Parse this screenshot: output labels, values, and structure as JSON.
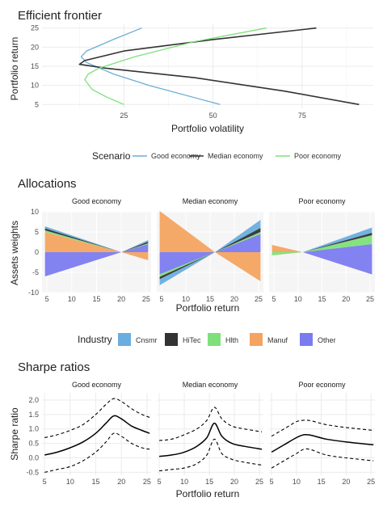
{
  "colors": {
    "good": "#6baed6",
    "median": "#333333",
    "poor": "#7fe07a",
    "Cnsmr": "#6aaee0",
    "HiTec": "#333333",
    "Hlth": "#7fe07a",
    "Manuf": "#f4a460",
    "Other": "#7b7bf0",
    "grid": "#ebebeb",
    "panel_bg": "#f5f5f5"
  },
  "frontier": {
    "title": "Efficient frontier",
    "xlabel": "Portfolio volatility",
    "ylabel": "Portfolio return",
    "xticks": [
      "25",
      "50",
      "75"
    ],
    "yticks": [
      "5",
      "10",
      "15",
      "20",
      "25"
    ]
  },
  "legend1": {
    "title": "Scenario",
    "items": [
      "Good economy",
      "Median economy",
      "Poor economy"
    ]
  },
  "allocations": {
    "title": "Allocations",
    "ylabel": "Assets weights",
    "xlabel": "Portfolio return",
    "panels": [
      "Good economy",
      "Median economy",
      "Poor economy"
    ],
    "xticks": [
      "5",
      "10",
      "15",
      "20",
      "25"
    ],
    "yticks": [
      "10",
      "5",
      "0",
      "-5",
      "-10"
    ]
  },
  "legend2": {
    "title": "Industry",
    "items": [
      "Cnsmr",
      "HiTec",
      "Hlth",
      "Manuf",
      "Other"
    ]
  },
  "sharpe": {
    "title": "Sharpe ratios",
    "ylabel": "Sharpe ratio",
    "xlabel": "Portfolio return",
    "panels": [
      "Good economy",
      "Median economy",
      "Poor economy"
    ],
    "xticks": [
      "5",
      "10",
      "15",
      "20",
      "25"
    ],
    "yticks": [
      "2.0",
      "1.5",
      "1.0",
      "0.5",
      "0.0",
      "-0.5"
    ]
  },
  "chart_data": [
    {
      "type": "line",
      "title": "Efficient frontier",
      "xlabel": "Portfolio volatility",
      "ylabel": "Portfolio return",
      "xlim": [
        2,
        95
      ],
      "ylim": [
        4,
        26
      ],
      "series": [
        {
          "name": "Good economy",
          "x": [
            30,
            22,
            14.5,
            13,
            14.5,
            22,
            32,
            52
          ],
          "y": [
            25,
            22,
            19,
            17.5,
            16,
            13,
            10,
            5
          ]
        },
        {
          "name": "Median economy",
          "x": [
            79,
            50,
            25,
            14,
            12.5,
            20,
            45,
            70,
            91
          ],
          "y": [
            25,
            22,
            19,
            16.5,
            15.5,
            14.5,
            12,
            8.5,
            5
          ]
        },
        {
          "name": "Poor economy",
          "x": [
            65,
            45,
            28,
            18,
            15,
            14,
            16,
            20,
            25
          ],
          "y": [
            25,
            21.5,
            17.5,
            14.5,
            13,
            11.5,
            9,
            7,
            5
          ]
        }
      ]
    },
    {
      "type": "area",
      "title": "Allocations",
      "xlabel": "Portfolio return",
      "ylabel": "Assets weights",
      "xlim": [
        4,
        26
      ],
      "ylim": [
        -10,
        10
      ],
      "panels": [
        {
          "name": "Good economy",
          "x0": 4.6,
          "x1": 25.4,
          "xc": 20,
          "pos": {
            "Cnsmr": [
              0.5,
              0.4
            ],
            "HiTec": [
              0.5,
              0.4
            ],
            "Hlth": [
              0.4,
              0.2
            ],
            "Manuf": [
              5.0,
              0.0
            ],
            "Other": [
              0.0,
              2.0
            ]
          },
          "neg": {
            "Cnsmr": [
              0.0,
              0.0
            ],
            "HiTec": [
              0.0,
              0.0
            ],
            "Hlth": [
              0.0,
              0.0
            ],
            "Manuf": [
              0.0,
              2.0
            ],
            "Other": [
              6.0,
              0.0
            ]
          }
        },
        {
          "name": "Median economy",
          "x0": 4.6,
          "x1": 25.4,
          "xc": 16,
          "pos": {
            "Cnsmr": [
              0.0,
              2.0
            ],
            "HiTec": [
              0.0,
              1.0
            ],
            "Hlth": [
              0.0,
              0.5
            ],
            "Manuf": [
              10.2,
              0.0
            ],
            "Other": [
              0.0,
              4.5
            ]
          },
          "neg": {
            "Cnsmr": [
              1.5,
              0.0
            ],
            "HiTec": [
              0.6,
              0.0
            ],
            "Hlth": [
              0.6,
              0.0
            ],
            "Manuf": [
              0.0,
              7.2
            ],
            "Other": [
              5.5,
              0.0
            ]
          }
        },
        {
          "name": "Poor economy",
          "x0": 4.6,
          "x1": 25.4,
          "xc": 11,
          "pos": {
            "Cnsmr": [
              0.0,
              1.3
            ],
            "HiTec": [
              0.0,
              0.6
            ],
            "Hlth": [
              0.0,
              2.2
            ],
            "Manuf": [
              1.8,
              0.0
            ],
            "Other": [
              0.0,
              2.0
            ]
          },
          "neg": {
            "Cnsmr": [
              0.0,
              0.0
            ],
            "HiTec": [
              0.0,
              0.0
            ],
            "Hlth": [
              0.8,
              0.0
            ],
            "Manuf": [
              0.0,
              0.0
            ],
            "Other": [
              0.0,
              5.5
            ]
          }
        }
      ]
    },
    {
      "type": "line",
      "title": "Sharpe ratios",
      "xlabel": "Portfolio return",
      "ylabel": "Sharpe ratio",
      "xlim": [
        4.5,
        25.8
      ],
      "ylim": [
        -0.6,
        2.25
      ],
      "panels": [
        {
          "name": "Good economy",
          "x": [
            5,
            7.5,
            10,
            12.5,
            15,
            17,
            18.5,
            20,
            22,
            24,
            25.5
          ],
          "mid": [
            0.1,
            0.2,
            0.35,
            0.55,
            0.85,
            1.2,
            1.45,
            1.35,
            1.1,
            0.95,
            0.85
          ],
          "hi": [
            0.7,
            0.8,
            0.95,
            1.15,
            1.5,
            1.85,
            2.05,
            1.95,
            1.7,
            1.5,
            1.4
          ],
          "lo": [
            -0.5,
            -0.4,
            -0.3,
            -0.1,
            0.2,
            0.55,
            0.85,
            0.75,
            0.5,
            0.35,
            0.3
          ]
        },
        {
          "name": "Median economy",
          "x": [
            5,
            7.5,
            10,
            12.5,
            14.5,
            16,
            17.5,
            19.5,
            22,
            25.5
          ],
          "mid": [
            0.05,
            0.1,
            0.2,
            0.4,
            0.7,
            1.2,
            0.75,
            0.5,
            0.4,
            0.3
          ],
          "hi": [
            0.6,
            0.65,
            0.8,
            1.0,
            1.3,
            1.75,
            1.35,
            1.1,
            1.0,
            0.9
          ],
          "lo": [
            -0.45,
            -0.4,
            -0.35,
            -0.2,
            0.1,
            0.65,
            0.15,
            -0.05,
            -0.15,
            -0.25
          ]
        },
        {
          "name": "Poor economy",
          "x": [
            5,
            7.5,
            10,
            11.5,
            13,
            16,
            20,
            25.5
          ],
          "mid": [
            0.2,
            0.45,
            0.7,
            0.8,
            0.78,
            0.65,
            0.55,
            0.45
          ],
          "hi": [
            0.75,
            1.0,
            1.25,
            1.3,
            1.28,
            1.15,
            1.05,
            0.95
          ],
          "lo": [
            -0.35,
            -0.1,
            0.15,
            0.3,
            0.28,
            0.1,
            -0.0,
            -0.1
          ]
        }
      ]
    }
  ]
}
